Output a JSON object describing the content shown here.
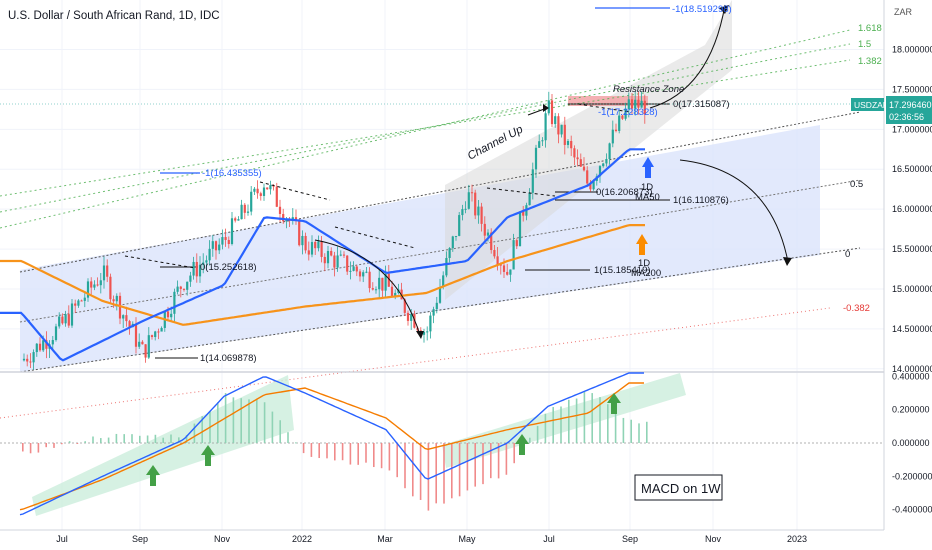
{
  "header": {
    "symbol_title": "U.S. Dollar / South African Rand, 1D, IDC",
    "currency": "ZAR"
  },
  "price_badge": {
    "ticker": "USDZAR",
    "price": "17.296460",
    "countdown": "02:36:56"
  },
  "colors": {
    "candle_up": "#26a69a",
    "candle_down": "#ef5350",
    "ma50": "#2962ff",
    "ma200": "#f7931a",
    "channel_fill": "#dbe3fb",
    "channel_up_fill": "#d9d9d9",
    "resistance_zone": "#f3a8ab",
    "fib_top": "#2962ff",
    "fib_ext": "#4caf50",
    "fib_neg": "#e53935",
    "macd_line": "#2962ff",
    "signal_line": "#f57c00",
    "arrow_green": "#43a047",
    "arrow_blue": "#2962ff",
    "arrow_orange": "#fb8c00"
  },
  "axes": {
    "price_ticks": [
      "18.000000",
      "17.500000",
      "17.000000",
      "16.500000",
      "16.000000",
      "15.500000",
      "15.000000",
      "14.500000",
      "14.000000"
    ],
    "price_tick_values": [
      18.0,
      17.5,
      17.0,
      16.5,
      16.0,
      15.5,
      15.0,
      14.5,
      14.0
    ],
    "price_range": [
      13.96,
      18.62
    ],
    "macd_ticks": [
      "0.400000",
      "0.200000",
      "0.000000",
      "-0.200000",
      "-0.400000"
    ],
    "macd_tick_values": [
      0.4,
      0.2,
      0.0,
      -0.2,
      -0.4
    ],
    "macd_range": [
      -0.48,
      0.48
    ],
    "time_labels": [
      "Jul",
      "Sep",
      "Nov",
      "2022",
      "Mar",
      "May",
      "Jul",
      "Sep",
      "Nov",
      "2023"
    ]
  },
  "annotations": {
    "resistance_zone": "Resistance Zone",
    "channel_up": "Channel Up",
    "ma50_label_1": "1D",
    "ma50_label_2": "MA50",
    "ma200_label_1": "1D",
    "ma200_label_2": "MA200",
    "macd_box": "MACD on 1W",
    "fib_labels": {
      "top_target": "-1(18.519298)",
      "ext_1618": "1.618",
      "ext_15": "1.5",
      "ext_1382": "1.382",
      "high_0": "0(17.315087)",
      "mid_neg1": "-1(17.228328)",
      "left_neg1": "-1(16.435355)",
      "mid_0": "0(16.206873)",
      "mid_1": "1(16.110876)",
      "half": "0.5",
      "left_0": "0(15.252618)",
      "low_1": "1(15.185419)",
      "zero": "0",
      "bottom_1": "1(14.069878)",
      "neg_0382": "-0.382"
    }
  },
  "chart_data": [
    {
      "type": "candlestick",
      "title": "U.S. Dollar / South African Rand, 1D, IDC",
      "ylabel": "ZAR",
      "ylim": [
        13.96,
        18.62
      ],
      "x_labels": [
        "Jul",
        "Sep",
        "Nov",
        "2022",
        "Mar",
        "May",
        "Jul",
        "Sep",
        "Nov",
        "2023"
      ],
      "series_anchor_points": {
        "price_close": [
          [
            "Jun 2021",
            14.1
          ],
          [
            "Jul 2021",
            14.55
          ],
          [
            "Aug 2021",
            15.2
          ],
          [
            "Sep 2021",
            14.2
          ],
          [
            "Oct 2021",
            15.1
          ],
          [
            "Nov 2021",
            15.6
          ],
          [
            "Dec 2021",
            16.35
          ],
          [
            "Jan 2022",
            15.55
          ],
          [
            "Feb 2022",
            15.3
          ],
          [
            "Mar 2022",
            15.05
          ],
          [
            "Apr 2022",
            14.45
          ],
          [
            "May 2022",
            16.2
          ],
          [
            "Jun 2022",
            15.2
          ],
          [
            "Jul 2022",
            17.25
          ],
          [
            "Aug 2022",
            16.3
          ],
          [
            "Sep 2022",
            17.3
          ]
        ],
        "ma50": [
          [
            "Jun 2021",
            14.7
          ],
          [
            "Jul 2021",
            14.1
          ],
          [
            "Sep 2021",
            14.6
          ],
          [
            "Nov 2021",
            15.05
          ],
          [
            "Dec 2021",
            15.9
          ],
          [
            "Jan 2022",
            15.85
          ],
          [
            "Mar 2022",
            15.2
          ],
          [
            "May 2022",
            15.35
          ],
          [
            "Jun 2022",
            15.9
          ],
          [
            "Aug 2022",
            16.3
          ],
          [
            "Sep 2022",
            16.75
          ]
        ],
        "ma200": [
          [
            "Jun 2021",
            15.35
          ],
          [
            "Aug 2021",
            14.85
          ],
          [
            "Oct 2021",
            14.55
          ],
          [
            "Jan 2022",
            14.78
          ],
          [
            "Apr 2022",
            14.95
          ],
          [
            "Jun 2022",
            15.35
          ],
          [
            "Sep 2022",
            15.8
          ]
        ]
      },
      "levels": {
        "-1_top": 18.519298,
        "0_high": 17.315087,
        "-1_mid": 17.228328,
        "-1_left": 16.435355,
        "0_mid": 16.206873,
        "1_mid": 16.110876,
        "0_left": 15.252618,
        "1_low": 15.185419,
        "1_bottom": 14.069878
      },
      "last_price": 17.29646
    },
    {
      "type": "line",
      "title": "MACD on 1W",
      "ylim": [
        -0.48,
        0.48
      ],
      "series": [
        {
          "name": "MACD",
          "values": [
            [
              "Jun 2021",
              -0.43
            ],
            [
              "Aug 2021",
              -0.2
            ],
            [
              "Oct 2021",
              0.02
            ],
            [
              "Nov 2021",
              0.28
            ],
            [
              "Dec 2021",
              0.4
            ],
            [
              "Jan 2022",
              0.3
            ],
            [
              "Mar 2022",
              0.08
            ],
            [
              "Apr 2022",
              -0.22
            ],
            [
              "Jun 2022",
              0.0
            ],
            [
              "Jul 2022",
              0.22
            ],
            [
              "Sep 2022",
              0.42
            ]
          ]
        },
        {
          "name": "Signal",
          "values": [
            [
              "Jun 2021",
              -0.4
            ],
            [
              "Aug 2021",
              -0.22
            ],
            [
              "Oct 2021",
              0.0
            ],
            [
              "Dec 2021",
              0.29
            ],
            [
              "Jan 2022",
              0.33
            ],
            [
              "Mar 2022",
              0.15
            ],
            [
              "Apr 2022",
              -0.04
            ],
            [
              "Jun 2022",
              0.08
            ],
            [
              "Aug 2022",
              0.18
            ],
            [
              "Sep 2022",
              0.36
            ]
          ]
        }
      ]
    }
  ]
}
